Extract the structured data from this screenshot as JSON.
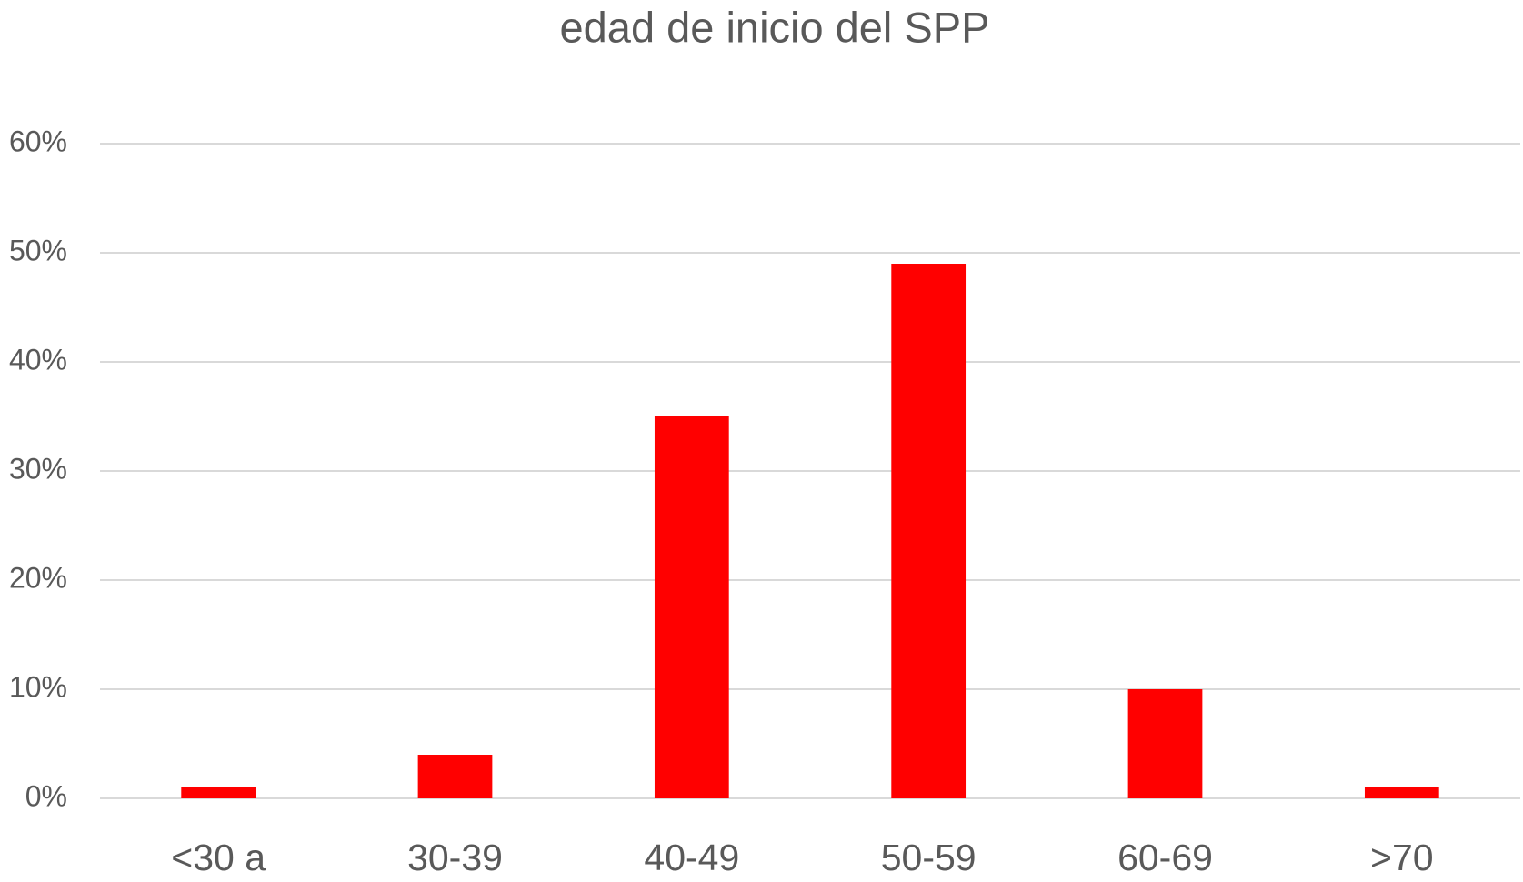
{
  "chart_data": {
    "type": "bar",
    "title": "edad de inicio del SPP",
    "categories": [
      "<30 a",
      "30-39",
      "40-49",
      "50-59",
      "60-69",
      ">70"
    ],
    "values": [
      1,
      4,
      35,
      49,
      10,
      1
    ],
    "color": "#ff0000",
    "ylim": [
      0,
      60
    ],
    "yticks": [
      {
        "value": 0,
        "label": "0%"
      },
      {
        "value": 10,
        "label": "10%"
      },
      {
        "value": 20,
        "label": "20%"
      },
      {
        "value": 30,
        "label": "30%"
      },
      {
        "value": 40,
        "label": "40%"
      },
      {
        "value": 50,
        "label": "50%"
      },
      {
        "value": 60,
        "label": "60%"
      }
    ],
    "grid": true
  }
}
